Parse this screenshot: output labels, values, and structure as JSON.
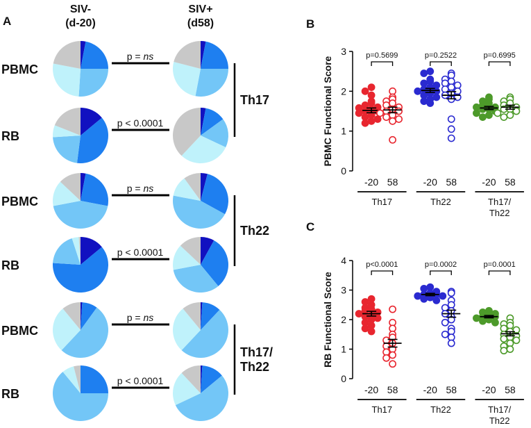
{
  "panel_a": {
    "letter": "A",
    "col_header_left": [
      "SIV-",
      "(d-20)"
    ],
    "col_header_right": [
      "SIV+",
      "(d58)"
    ],
    "groups": [
      {
        "name_lines": [
          "Th17"
        ],
        "rows": [
          {
            "tissue": "PBMC",
            "p_prefix": "p = ",
            "p_value": "ns",
            "p_italic": true,
            "left": [
              3,
              22,
              26,
              27,
              22
            ],
            "right": [
              3,
              22,
              28,
              26,
              21
            ]
          },
          {
            "tissue": "RB",
            "p_prefix": "p < 0.0001",
            "p_value": "",
            "p_italic": false,
            "left": [
              14,
              38,
              22,
              7,
              19
            ],
            "right": [
              3,
              12,
              17,
              30,
              38
            ]
          }
        ]
      },
      {
        "name_lines": [
          "Th22"
        ],
        "rows": [
          {
            "tissue": "PBMC",
            "p_prefix": "p = ",
            "p_value": "ns",
            "p_italic": true,
            "left": [
              3,
              25,
              44,
              15,
              13
            ],
            "right": [
              4,
              29,
              45,
              12,
              10
            ]
          },
          {
            "tissue": "RB",
            "p_prefix": "p < 0.0001",
            "p_value": "",
            "p_italic": false,
            "left": [
              14,
              62,
              19,
              4,
              1
            ],
            "right": [
              8,
              31,
              33,
              15,
              13
            ]
          }
        ]
      },
      {
        "name_lines": [
          "Th17/",
          "Th22"
        ],
        "rows": [
          {
            "tissue": "PBMC",
            "p_prefix": "p = ",
            "p_value": "ns",
            "p_italic": true,
            "left": [
              1,
              9,
              52,
              27,
              11
            ],
            "right": [
              1,
              11,
              50,
              27,
              11
            ]
          },
          {
            "tissue": "RB",
            "p_prefix": "p < 0.0001",
            "p_value": "",
            "p_italic": false,
            "left": [
              0,
              25,
              64,
              7,
              4
            ],
            "right": [
              1,
              13,
              54,
              20,
              12
            ]
          }
        ]
      }
    ],
    "pie_colors": [
      "#1111c0",
      "#1e7ff0",
      "#73c6f7",
      "#bff2fb",
      "#c8c8c8"
    ]
  },
  "chart_data": [
    {
      "type": "scatter",
      "panel": "B",
      "title": "",
      "xlabel": "",
      "ylabel": "PBMC Functional Score",
      "ylim": [
        0,
        3
      ],
      "yticks": [
        0,
        1,
        2,
        3
      ],
      "groups": [
        {
          "name": "Th17",
          "p_label": "p=0.5699",
          "color": "#e8262f",
          "series": [
            {
              "day": "-20",
              "filled": true,
              "mean": 1.52,
              "sem": 0.06,
              "values": [
                2.1,
                2.0,
                1.75,
                1.7,
                1.6,
                1.58,
                1.55,
                1.5,
                1.5,
                1.45,
                1.4,
                1.35,
                1.3,
                1.25,
                1.2,
                1.9,
                1.65
              ]
            },
            {
              "day": "58",
              "filled": false,
              "mean": 1.53,
              "sem": 0.07,
              "values": [
                2.0,
                1.85,
                1.75,
                1.7,
                1.65,
                1.6,
                1.55,
                1.5,
                1.5,
                1.45,
                1.4,
                1.35,
                1.3,
                1.25,
                0.78,
                1.8
              ]
            }
          ]
        },
        {
          "name": "Th22",
          "p_label": "p=0.2522",
          "color": "#2a2ad0",
          "series": [
            {
              "day": "-20",
              "filled": true,
              "mean": 2.02,
              "sem": 0.05,
              "values": [
                2.5,
                2.45,
                2.3,
                2.2,
                2.15,
                2.1,
                2.05,
                2.0,
                2.0,
                1.95,
                1.9,
                1.85,
                1.8,
                1.75,
                2.25,
                1.7
              ]
            },
            {
              "day": "58",
              "filled": false,
              "mean": 1.9,
              "sem": 0.09,
              "values": [
                2.45,
                2.4,
                2.3,
                2.25,
                2.2,
                2.1,
                2.05,
                2.0,
                1.95,
                1.9,
                1.85,
                1.8,
                1.3,
                1.05,
                0.82,
                2.15
              ]
            }
          ]
        },
        {
          "name": "Th17/\nTh22",
          "p_label": "p=0.6995",
          "color": "#4d9a2a",
          "series": [
            {
              "day": "-20",
              "filled": true,
              "mean": 1.58,
              "sem": 0.04,
              "values": [
                1.85,
                1.8,
                1.7,
                1.65,
                1.6,
                1.6,
                1.55,
                1.55,
                1.5,
                1.45,
                1.4,
                1.35,
                1.75
              ]
            },
            {
              "day": "58",
              "filled": false,
              "mean": 1.6,
              "sem": 0.05,
              "values": [
                1.85,
                1.8,
                1.75,
                1.7,
                1.65,
                1.6,
                1.55,
                1.55,
                1.5,
                1.45,
                1.4,
                1.35
              ]
            }
          ]
        }
      ]
    },
    {
      "type": "scatter",
      "panel": "C",
      "title": "",
      "xlabel": "",
      "ylabel": "RB Functional Score",
      "ylim": [
        0,
        4
      ],
      "yticks": [
        0,
        1,
        2,
        3,
        4
      ],
      "groups": [
        {
          "name": "Th17",
          "p_label": "p<0.0001",
          "color": "#e8262f",
          "series": [
            {
              "day": "-20",
              "filled": true,
              "mean": 2.2,
              "sem": 0.08,
              "values": [
                2.7,
                2.6,
                2.5,
                2.4,
                2.35,
                2.3,
                2.25,
                2.2,
                2.15,
                2.1,
                2.05,
                2.0,
                1.9,
                1.8,
                1.7,
                1.6
              ]
            },
            {
              "day": "58",
              "filled": false,
              "mean": 1.2,
              "sem": 0.13,
              "values": [
                2.35,
                1.9,
                1.7,
                1.5,
                1.4,
                1.3,
                1.2,
                1.1,
                1.0,
                0.9,
                0.8,
                0.7,
                0.5
              ]
            }
          ]
        },
        {
          "name": "Th22",
          "p_label": "p=0.0002",
          "color": "#2a2ad0",
          "series": [
            {
              "day": "-20",
              "filled": true,
              "mean": 2.85,
              "sem": 0.04,
              "values": [
                3.1,
                3.05,
                2.95,
                2.9,
                2.85,
                2.85,
                2.8,
                2.8,
                2.75,
                2.7,
                2.65
              ]
            },
            {
              "day": "58",
              "filled": false,
              "mean": 2.2,
              "sem": 0.12,
              "values": [
                2.95,
                2.9,
                2.65,
                2.5,
                2.4,
                2.3,
                2.2,
                2.1,
                2.0,
                1.9,
                1.7,
                1.6,
                1.5,
                1.4,
                1.2
              ]
            }
          ]
        },
        {
          "name": "Th17/\nTh22",
          "p_label": "p=0.0001",
          "color": "#4d9a2a",
          "series": [
            {
              "day": "-20",
              "filled": true,
              "mean": 2.1,
              "sem": 0.04,
              "values": [
                2.3,
                2.25,
                2.2,
                2.15,
                2.1,
                2.1,
                2.05,
                2.0,
                1.95,
                1.9
              ]
            },
            {
              "day": "58",
              "filled": false,
              "mean": 1.52,
              "sem": 0.07,
              "values": [
                2.05,
                1.9,
                1.85,
                1.8,
                1.7,
                1.65,
                1.6,
                1.5,
                1.45,
                1.4,
                1.35,
                1.3,
                1.2,
                1.1,
                1.0,
                0.95
              ]
            }
          ]
        }
      ]
    }
  ]
}
